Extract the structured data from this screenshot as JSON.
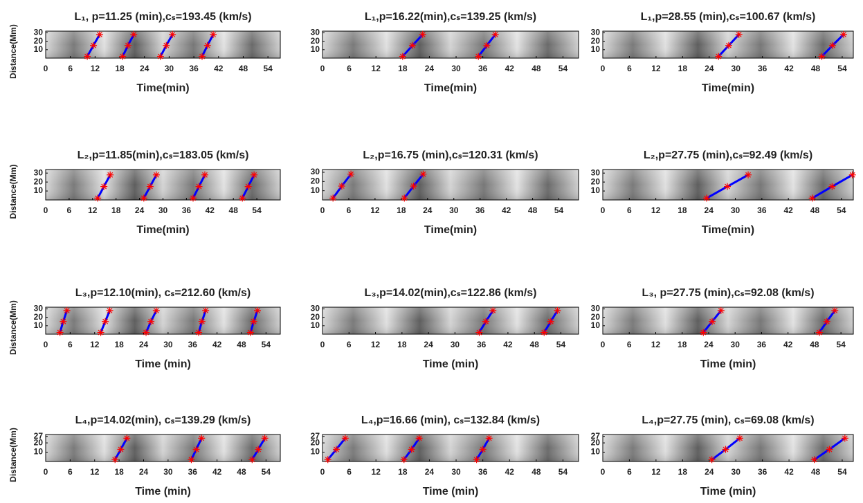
{
  "chart_data": [
    {
      "type": "timedistance",
      "title": "L₁, p=11.25 (min),cₛ=193.45 (km/s)",
      "x_label": "Time(min)",
      "y_label": "Distance(Mm)",
      "xlim": [
        0,
        57
      ],
      "ylim": [
        0,
        32
      ],
      "xticks": [
        0,
        6,
        12,
        18,
        24,
        30,
        36,
        42,
        48,
        54
      ],
      "yticks": [
        10,
        20,
        30
      ],
      "line_color": "#0000ff",
      "marker_color": "#ff0000",
      "fits": [
        {
          "x": [
            10.1,
            11.6,
            13.1
          ],
          "y": [
            2,
            15,
            28
          ]
        },
        {
          "x": [
            18.7,
            20.0,
            21.4
          ],
          "y": [
            2,
            15,
            28
          ]
        },
        {
          "x": [
            27.9,
            29.3,
            30.8
          ],
          "y": [
            2,
            15,
            28
          ]
        },
        {
          "x": [
            38.0,
            39.3,
            40.7
          ],
          "y": [
            2,
            15,
            28
          ]
        }
      ]
    },
    {
      "type": "timedistance",
      "title": "L₁,p=16.22(min),cₛ=139.25 (km/s)",
      "x_label": "Time(min)",
      "xlim": [
        0,
        57.5
      ],
      "ylim": [
        0,
        32
      ],
      "xticks": [
        0,
        6,
        12,
        18,
        24,
        30,
        36,
        42,
        48,
        54
      ],
      "yticks": [
        10,
        20,
        30
      ],
      "line_color": "#0000ff",
      "marker_color": "#ff0000",
      "fits": [
        {
          "x": [
            18.0,
            20.2,
            22.5
          ],
          "y": [
            2,
            15,
            28
          ]
        },
        {
          "x": [
            35.0,
            36.9,
            38.8
          ],
          "y": [
            2,
            15,
            28
          ]
        }
      ]
    },
    {
      "type": "timedistance",
      "title": "L₁,p=28.55 (min),cₛ=100.67 (km/s)",
      "x_label": "Time(min)",
      "xlim": [
        0,
        56.5
      ],
      "ylim": [
        0,
        32
      ],
      "xticks": [
        0,
        6,
        12,
        18,
        24,
        30,
        36,
        42,
        48,
        54
      ],
      "yticks": [
        10,
        20,
        30
      ],
      "line_color": "#0000ff",
      "marker_color": "#ff0000",
      "fits": [
        {
          "x": [
            26.1,
            28.4,
            30.7
          ],
          "y": [
            2,
            15,
            28
          ]
        },
        {
          "x": [
            49.4,
            51.8,
            54.3
          ],
          "y": [
            2,
            15,
            28
          ]
        }
      ]
    },
    {
      "type": "timedistance",
      "title": "L₂,p=11.85(min),cₛ=183.05 (km/s)",
      "x_label": "Time(min)",
      "y_label": "Distance(Mm)",
      "xlim": [
        0,
        60
      ],
      "ylim": [
        0,
        34
      ],
      "xticks": [
        0,
        6,
        12,
        18,
        24,
        30,
        36,
        42,
        48,
        54
      ],
      "yticks": [
        10,
        20,
        30
      ],
      "line_color": "#0000ff",
      "marker_color": "#ff0000",
      "fits": [
        {
          "x": [
            13.3,
            14.9,
            16.5
          ],
          "y": [
            2,
            15,
            28
          ]
        },
        {
          "x": [
            25.1,
            26.7,
            28.3
          ],
          "y": [
            2,
            15,
            28
          ]
        },
        {
          "x": [
            37.7,
            39.2,
            40.7
          ],
          "y": [
            2,
            15,
            28
          ]
        },
        {
          "x": [
            50.3,
            51.8,
            53.3
          ],
          "y": [
            2,
            15,
            28
          ]
        }
      ]
    },
    {
      "type": "timedistance",
      "title": "L₂,p=16.75 (min),cₛ=120.31 (km/s)",
      "x_label": "Time(min)",
      "xlim": [
        0,
        58.5
      ],
      "ylim": [
        0,
        33
      ],
      "xticks": [
        0,
        6,
        12,
        18,
        24,
        30,
        36,
        42,
        48,
        54
      ],
      "yticks": [
        10,
        20,
        30
      ],
      "line_color": "#0000ff",
      "marker_color": "#ff0000",
      "fits": [
        {
          "x": [
            2.4,
            4.4,
            6.5
          ],
          "y": [
            2,
            15,
            28
          ]
        },
        {
          "x": [
            18.7,
            20.8,
            23.0
          ],
          "y": [
            2,
            15,
            28
          ]
        }
      ]
    },
    {
      "type": "timedistance",
      "title": "L₂,p=27.75 (min),cₛ=92.49 (km/s)",
      "x_label": "Time(min)",
      "xlim": [
        0,
        56.7
      ],
      "ylim": [
        0,
        34
      ],
      "xticks": [
        0,
        6,
        12,
        18,
        24,
        30,
        36,
        42,
        48,
        54
      ],
      "yticks": [
        10,
        20,
        30
      ],
      "line_color": "#0000ff",
      "marker_color": "#ff0000",
      "fits": [
        {
          "x": [
            23.5,
            28.2,
            32.9
          ],
          "y": [
            2,
            15,
            28
          ]
        },
        {
          "x": [
            47.4,
            51.9,
            56.5
          ],
          "y": [
            2,
            15,
            28
          ]
        }
      ]
    },
    {
      "type": "timedistance",
      "title": "L₃,p=12.10(min), cₛ=212.60 (km/s)",
      "x_label": "Time (min)",
      "y_label": "Distance(Mm)",
      "xlim": [
        0,
        57.5
      ],
      "ylim": [
        0,
        32
      ],
      "xticks": [
        0,
        6,
        12,
        18,
        24,
        30,
        36,
        42,
        48,
        54
      ],
      "yticks": [
        10,
        20,
        30
      ],
      "line_color": "#0000ff",
      "marker_color": "#ff0000",
      "fits": [
        {
          "x": [
            3.5,
            4.3,
            5.2
          ],
          "y": [
            2,
            15,
            28
          ]
        },
        {
          "x": [
            13.5,
            14.6,
            15.7
          ],
          "y": [
            2,
            15,
            28
          ]
        },
        {
          "x": [
            24.6,
            25.8,
            27.1
          ],
          "y": [
            2,
            15,
            28
          ]
        },
        {
          "x": [
            37.5,
            38.3,
            39.2
          ],
          "y": [
            2,
            15,
            28
          ]
        },
        {
          "x": [
            50.2,
            51.0,
            51.9
          ],
          "y": [
            2,
            15,
            28
          ]
        }
      ]
    },
    {
      "type": "timedistance",
      "title": "L₃,p=14.02(min),cₛ=122.86 (km/s)",
      "x_label": "Time (min)",
      "xlim": [
        0,
        58
      ],
      "ylim": [
        0,
        32
      ],
      "xticks": [
        0,
        6,
        12,
        18,
        24,
        30,
        36,
        42,
        48,
        54
      ],
      "yticks": [
        10,
        20,
        30
      ],
      "line_color": "#0000ff",
      "marker_color": "#ff0000",
      "fits": [
        {
          "x": [
            35.5,
            37.0,
            38.6
          ],
          "y": [
            2,
            15,
            28
          ]
        },
        {
          "x": [
            50.2,
            51.7,
            53.2
          ],
          "y": [
            2,
            15,
            28
          ]
        }
      ]
    },
    {
      "type": "timedistance",
      "title": "L₃, p=27.75 (min),cₛ=92.08 (km/s)",
      "x_label": "Time (min)",
      "xlim": [
        0,
        56.8
      ],
      "ylim": [
        0,
        32
      ],
      "xticks": [
        0,
        6,
        12,
        18,
        24,
        30,
        36,
        42,
        48,
        54
      ],
      "yticks": [
        10,
        20,
        30
      ],
      "line_color": "#0000ff",
      "marker_color": "#ff0000",
      "fits": [
        {
          "x": [
            22.8,
            24.8,
            26.8
          ],
          "y": [
            2,
            15,
            28
          ]
        },
        {
          "x": [
            49.1,
            50.8,
            52.6
          ],
          "y": [
            2,
            15,
            28
          ]
        }
      ]
    },
    {
      "type": "timedistance",
      "title": "L₄,p=14.02(min), cₛ=139.29 (km/s)",
      "x_label": "Time (min)",
      "y_label": "Distance(Mm)",
      "xlim": [
        0,
        57.5
      ],
      "ylim": [
        0,
        29
      ],
      "xticks": [
        0,
        6,
        12,
        18,
        24,
        30,
        36,
        42,
        48,
        54
      ],
      "yticks": [
        10,
        20,
        27
      ],
      "line_color": "#0000ff",
      "marker_color": "#ff0000",
      "fits": [
        {
          "x": [
            17.0,
            18.4,
            19.9
          ],
          "y": [
            2,
            13,
            25
          ]
        },
        {
          "x": [
            35.7,
            36.9,
            38.2
          ],
          "y": [
            2,
            13,
            25
          ]
        },
        {
          "x": [
            50.6,
            52.1,
            53.7
          ],
          "y": [
            2,
            13,
            25
          ]
        }
      ]
    },
    {
      "type": "timedistance",
      "title": "L₄,p=16.66 (min), cₛ=132.84 (km/s)",
      "x_label": "Time (min)",
      "xlim": [
        0,
        57.5
      ],
      "ylim": [
        0,
        29
      ],
      "xticks": [
        0,
        6,
        12,
        18,
        24,
        30,
        36,
        42,
        48,
        54
      ],
      "yticks": [
        10,
        20,
        27
      ],
      "line_color": "#0000ff",
      "marker_color": "#ff0000",
      "fits": [
        {
          "x": [
            1.2,
            3.1,
            5.1
          ],
          "y": [
            2,
            13,
            25
          ]
        },
        {
          "x": [
            18.3,
            20.0,
            21.7
          ],
          "y": [
            2,
            13,
            25
          ]
        },
        {
          "x": [
            34.6,
            36.0,
            37.4
          ],
          "y": [
            2,
            13,
            25
          ]
        }
      ]
    },
    {
      "type": "timedistance",
      "title": "L₄,p=27.75 (min), cₛ=69.08 (km/s)",
      "x_label": "Time (min)",
      "xlim": [
        0,
        56.5
      ],
      "ylim": [
        0,
        29
      ],
      "xticks": [
        0,
        6,
        12,
        18,
        24,
        30,
        36,
        42,
        48,
        54
      ],
      "yticks": [
        10,
        20,
        27
      ],
      "line_color": "#0000ff",
      "marker_color": "#ff0000",
      "fits": [
        {
          "x": [
            24.6,
            27.7,
            30.9
          ],
          "y": [
            2,
            13,
            25
          ]
        },
        {
          "x": [
            47.7,
            51.1,
            54.6
          ],
          "y": [
            2,
            13,
            25
          ]
        }
      ]
    }
  ]
}
